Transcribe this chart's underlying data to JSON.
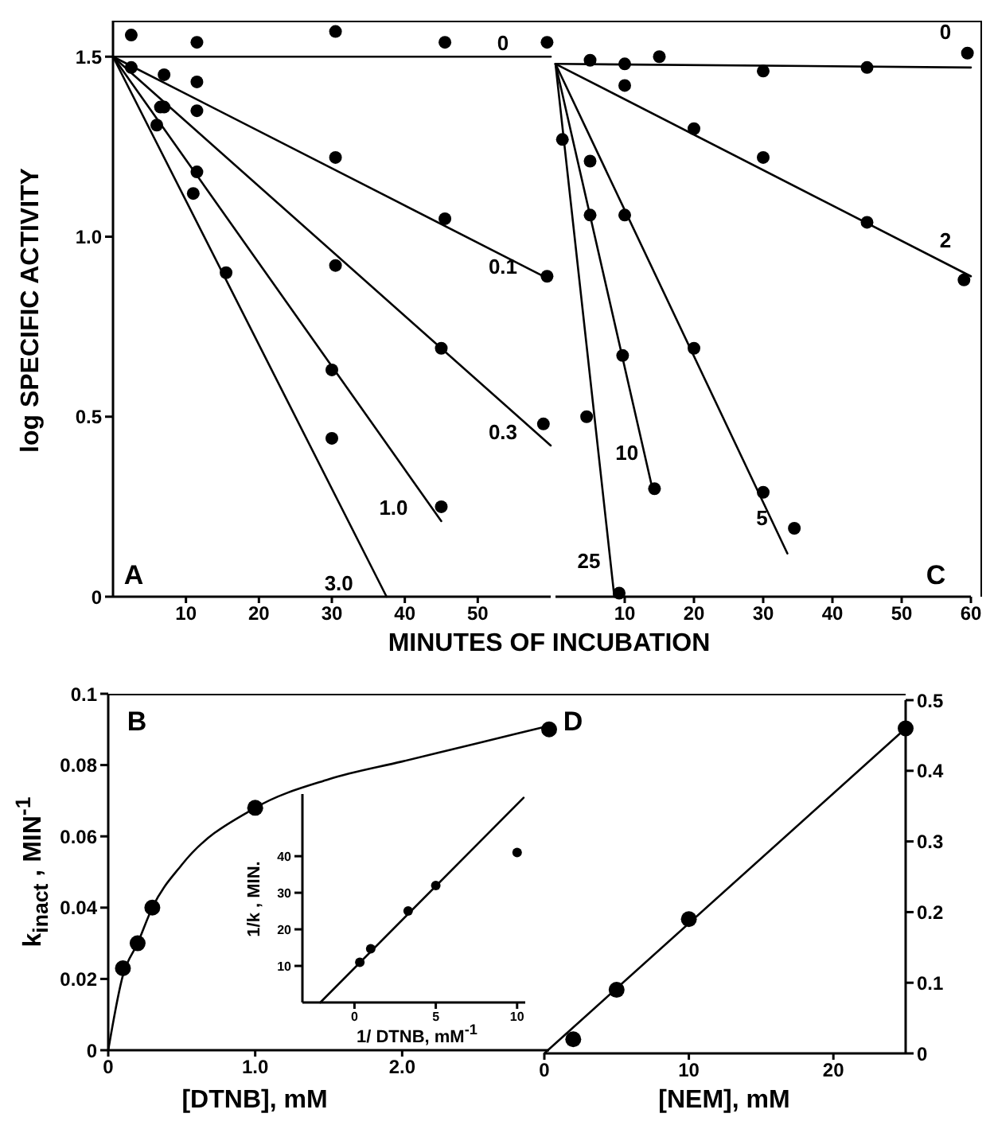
{
  "chart_data": [
    {
      "type": "scatter",
      "xlabel": "MINUTES OF INCUBATION",
      "ylabel": "log SPECIFIC ACTIVITY",
      "annotations": [
        "A"
      ],
      "xlim": [
        0,
        60
      ],
      "ylim": [
        0,
        1.6
      ],
      "xticks": [
        10,
        20,
        30,
        40,
        50
      ],
      "yticks": [
        0,
        0.5,
        {
          "value": 1,
          "label": "1.0"
        },
        1.5
      ],
      "grid": false,
      "legend": false,
      "line_style": "solid",
      "series": [
        {
          "marker": "circle",
          "color": "#000000",
          "x": [
            2.5,
            11.5,
            30.5,
            45.5,
            59.5
          ],
          "values": [
            1.56,
            1.54,
            1.57,
            1.54,
            1.54
          ]
        },
        {
          "type": "line",
          "marker": "none",
          "name": "0",
          "color": "#000000",
          "x": [
            0,
            60
          ],
          "values": [
            1.5,
            1.5
          ]
        },
        {
          "marker": "circle",
          "color": "#000000",
          "x": [
            7,
            11.5,
            30.5,
            45.5,
            59.5
          ],
          "values": [
            1.45,
            1.43,
            1.22,
            1.05,
            0.89
          ]
        },
        {
          "type": "line",
          "marker": "none",
          "name": "0.1",
          "color": "#000000",
          "x": [
            0,
            60
          ],
          "values": [
            1.5,
            0.88
          ]
        },
        {
          "marker": "circle",
          "color": "#000000",
          "x": [
            7,
            11.5,
            30.5,
            45,
            59
          ],
          "values": [
            1.36,
            1.35,
            0.92,
            0.69,
            0.48
          ]
        },
        {
          "type": "line",
          "marker": "none",
          "name": "0.3",
          "color": "#000000",
          "x": [
            0,
            60
          ],
          "values": [
            1.5,
            0.42
          ]
        },
        {
          "marker": "circle",
          "color": "#000000",
          "x": [
            6.5,
            11.5,
            30,
            45
          ],
          "values": [
            1.36,
            1.18,
            0.63,
            0.25
          ]
        },
        {
          "type": "line",
          "marker": "none",
          "name": "1.0",
          "color": "#000000",
          "x": [
            0,
            45
          ],
          "values": [
            1.5,
            0.21
          ]
        },
        {
          "marker": "circle",
          "color": "#000000",
          "x": [
            2.5,
            6,
            11,
            15.5,
            30
          ],
          "values": [
            1.47,
            1.31,
            1.12,
            0.9,
            0.44
          ]
        },
        {
          "type": "line",
          "marker": "none",
          "name": "3.0",
          "color": "#000000",
          "x": [
            0,
            37.5
          ],
          "values": [
            1.5,
            0
          ]
        }
      ]
    },
    {
      "type": "scatter",
      "annotations": [
        "C"
      ],
      "xlim": [
        0,
        60
      ],
      "ylim": [
        0,
        1.6
      ],
      "xticks": [
        10,
        20,
        30,
        40,
        50,
        60
      ],
      "yticks": [
        0.5,
        1
      ],
      "tick_labels": "x",
      "grid": false,
      "legend": false,
      "line_style": "solid",
      "series": [
        {
          "marker": "circle",
          "color": "#000000",
          "x": [
            5,
            10,
            15,
            30,
            45,
            59.5
          ],
          "values": [
            1.49,
            1.48,
            1.5,
            1.46,
            1.47,
            1.51
          ]
        },
        {
          "type": "line",
          "marker": "none",
          "name": "0",
          "color": "#000000",
          "x": [
            0,
            60
          ],
          "values": [
            1.48,
            1.47
          ]
        },
        {
          "marker": "circle",
          "color": "#000000",
          "x": [
            10,
            20,
            30,
            45,
            59
          ],
          "values": [
            1.42,
            1.3,
            1.22,
            1.04,
            0.88
          ]
        },
        {
          "type": "line",
          "marker": "none",
          "name": "2",
          "color": "#000000",
          "x": [
            0,
            60
          ],
          "values": [
            1.48,
            0.89
          ]
        },
        {
          "marker": "circle",
          "color": "#000000",
          "x": [
            5,
            10,
            20,
            30,
            34.5
          ],
          "values": [
            1.21,
            1.06,
            0.69,
            0.29,
            0.19
          ]
        },
        {
          "type": "line",
          "marker": "none",
          "name": "5",
          "color": "#000000",
          "x": [
            0,
            33.5
          ],
          "values": [
            1.48,
            0.12
          ]
        },
        {
          "marker": "circle",
          "color": "#000000",
          "x": [
            5,
            9.7,
            14.3
          ],
          "values": [
            1.06,
            0.67,
            0.3
          ]
        },
        {
          "type": "line",
          "marker": "none",
          "name": "10",
          "color": "#000000",
          "x": [
            0,
            14
          ],
          "values": [
            1.48,
            0.3
          ]
        },
        {
          "marker": "circle",
          "color": "#000000",
          "x": [
            1,
            4.5,
            9.2
          ],
          "values": [
            1.27,
            0.5,
            0.01
          ]
        },
        {
          "type": "line",
          "marker": "none",
          "name": "25",
          "color": "#000000",
          "x": [
            0,
            8.5
          ],
          "values": [
            1.48,
            0
          ]
        }
      ]
    },
    {
      "type": "scatter",
      "xlabel": "[DTNB], mM",
      "ylabel": "k$_{inact}$ , MIN$^{-1}$",
      "annotations": [
        "B"
      ],
      "xlim": [
        0,
        3
      ],
      "ylim": [
        0,
        0.1
      ],
      "xticks": [
        0,
        {
          "value": 1,
          "label": "1.0"
        },
        {
          "value": 2,
          "label": "2.0"
        }
      ],
      "yticks": [
        0,
        0.02,
        0.04,
        0.06,
        0.08,
        0.1
      ],
      "grid": false,
      "legend": false,
      "line_style": "solid",
      "series": [
        {
          "marker": "circle",
          "color": "#000000",
          "x": [
            0.1,
            0.2,
            0.3,
            1,
            3
          ],
          "values": [
            0.023,
            0.03,
            0.04,
            0.068,
            0.09
          ]
        },
        {
          "type": "line",
          "marker": "none",
          "color": "#000000",
          "x": [
            0,
            0.1,
            0.2,
            0.3,
            0.5,
            1,
            1.5,
            2,
            2.5,
            3
          ],
          "values": [
            0,
            0.021,
            0.03,
            0.04,
            0.052,
            0.068,
            0.076,
            0.081,
            0.086,
            0.091
          ]
        }
      ]
    },
    {
      "type": "scatter",
      "xlabel": "1/ DTNB, mM$^{-1}$",
      "ylabel": "1/k , MIN.",
      "xlim": [
        -3.2,
        10.5
      ],
      "ylim": [
        0,
        57
      ],
      "xticks": [
        0,
        5,
        10
      ],
      "yticks": [
        10,
        20,
        30,
        40
      ],
      "grid": false,
      "legend": false,
      "line_style": "solid",
      "series": [
        {
          "marker": "circle",
          "color": "#000000",
          "x": [
            0.33,
            1,
            3.3,
            5,
            10
          ],
          "values": [
            11,
            14.7,
            25,
            32,
            41
          ]
        },
        {
          "type": "line",
          "marker": "none",
          "color": "#000000",
          "x": [
            -2.1,
            10.4
          ],
          "values": [
            0,
            56
          ]
        }
      ]
    },
    {
      "type": "scatter",
      "xlabel": "[NEM], mM",
      "annotations": [
        "D"
      ],
      "xlim": [
        0,
        25
      ],
      "ylim": [
        0,
        0.5
      ],
      "xticks": [
        0,
        10,
        20
      ],
      "yticks": [
        0,
        0.1,
        0.2,
        0.3,
        0.4,
        0.5
      ],
      "grid": false,
      "legend": false,
      "line_style": "solid",
      "series": [
        {
          "marker": "circle",
          "color": "#000000",
          "x": [
            2,
            5,
            10,
            25
          ],
          "values": [
            0.02,
            0.09,
            0.19,
            0.46
          ]
        },
        {
          "type": "line",
          "marker": "none",
          "color": "#000000",
          "x": [
            0,
            25
          ],
          "values": [
            0,
            0.46
          ]
        }
      ]
    }
  ]
}
